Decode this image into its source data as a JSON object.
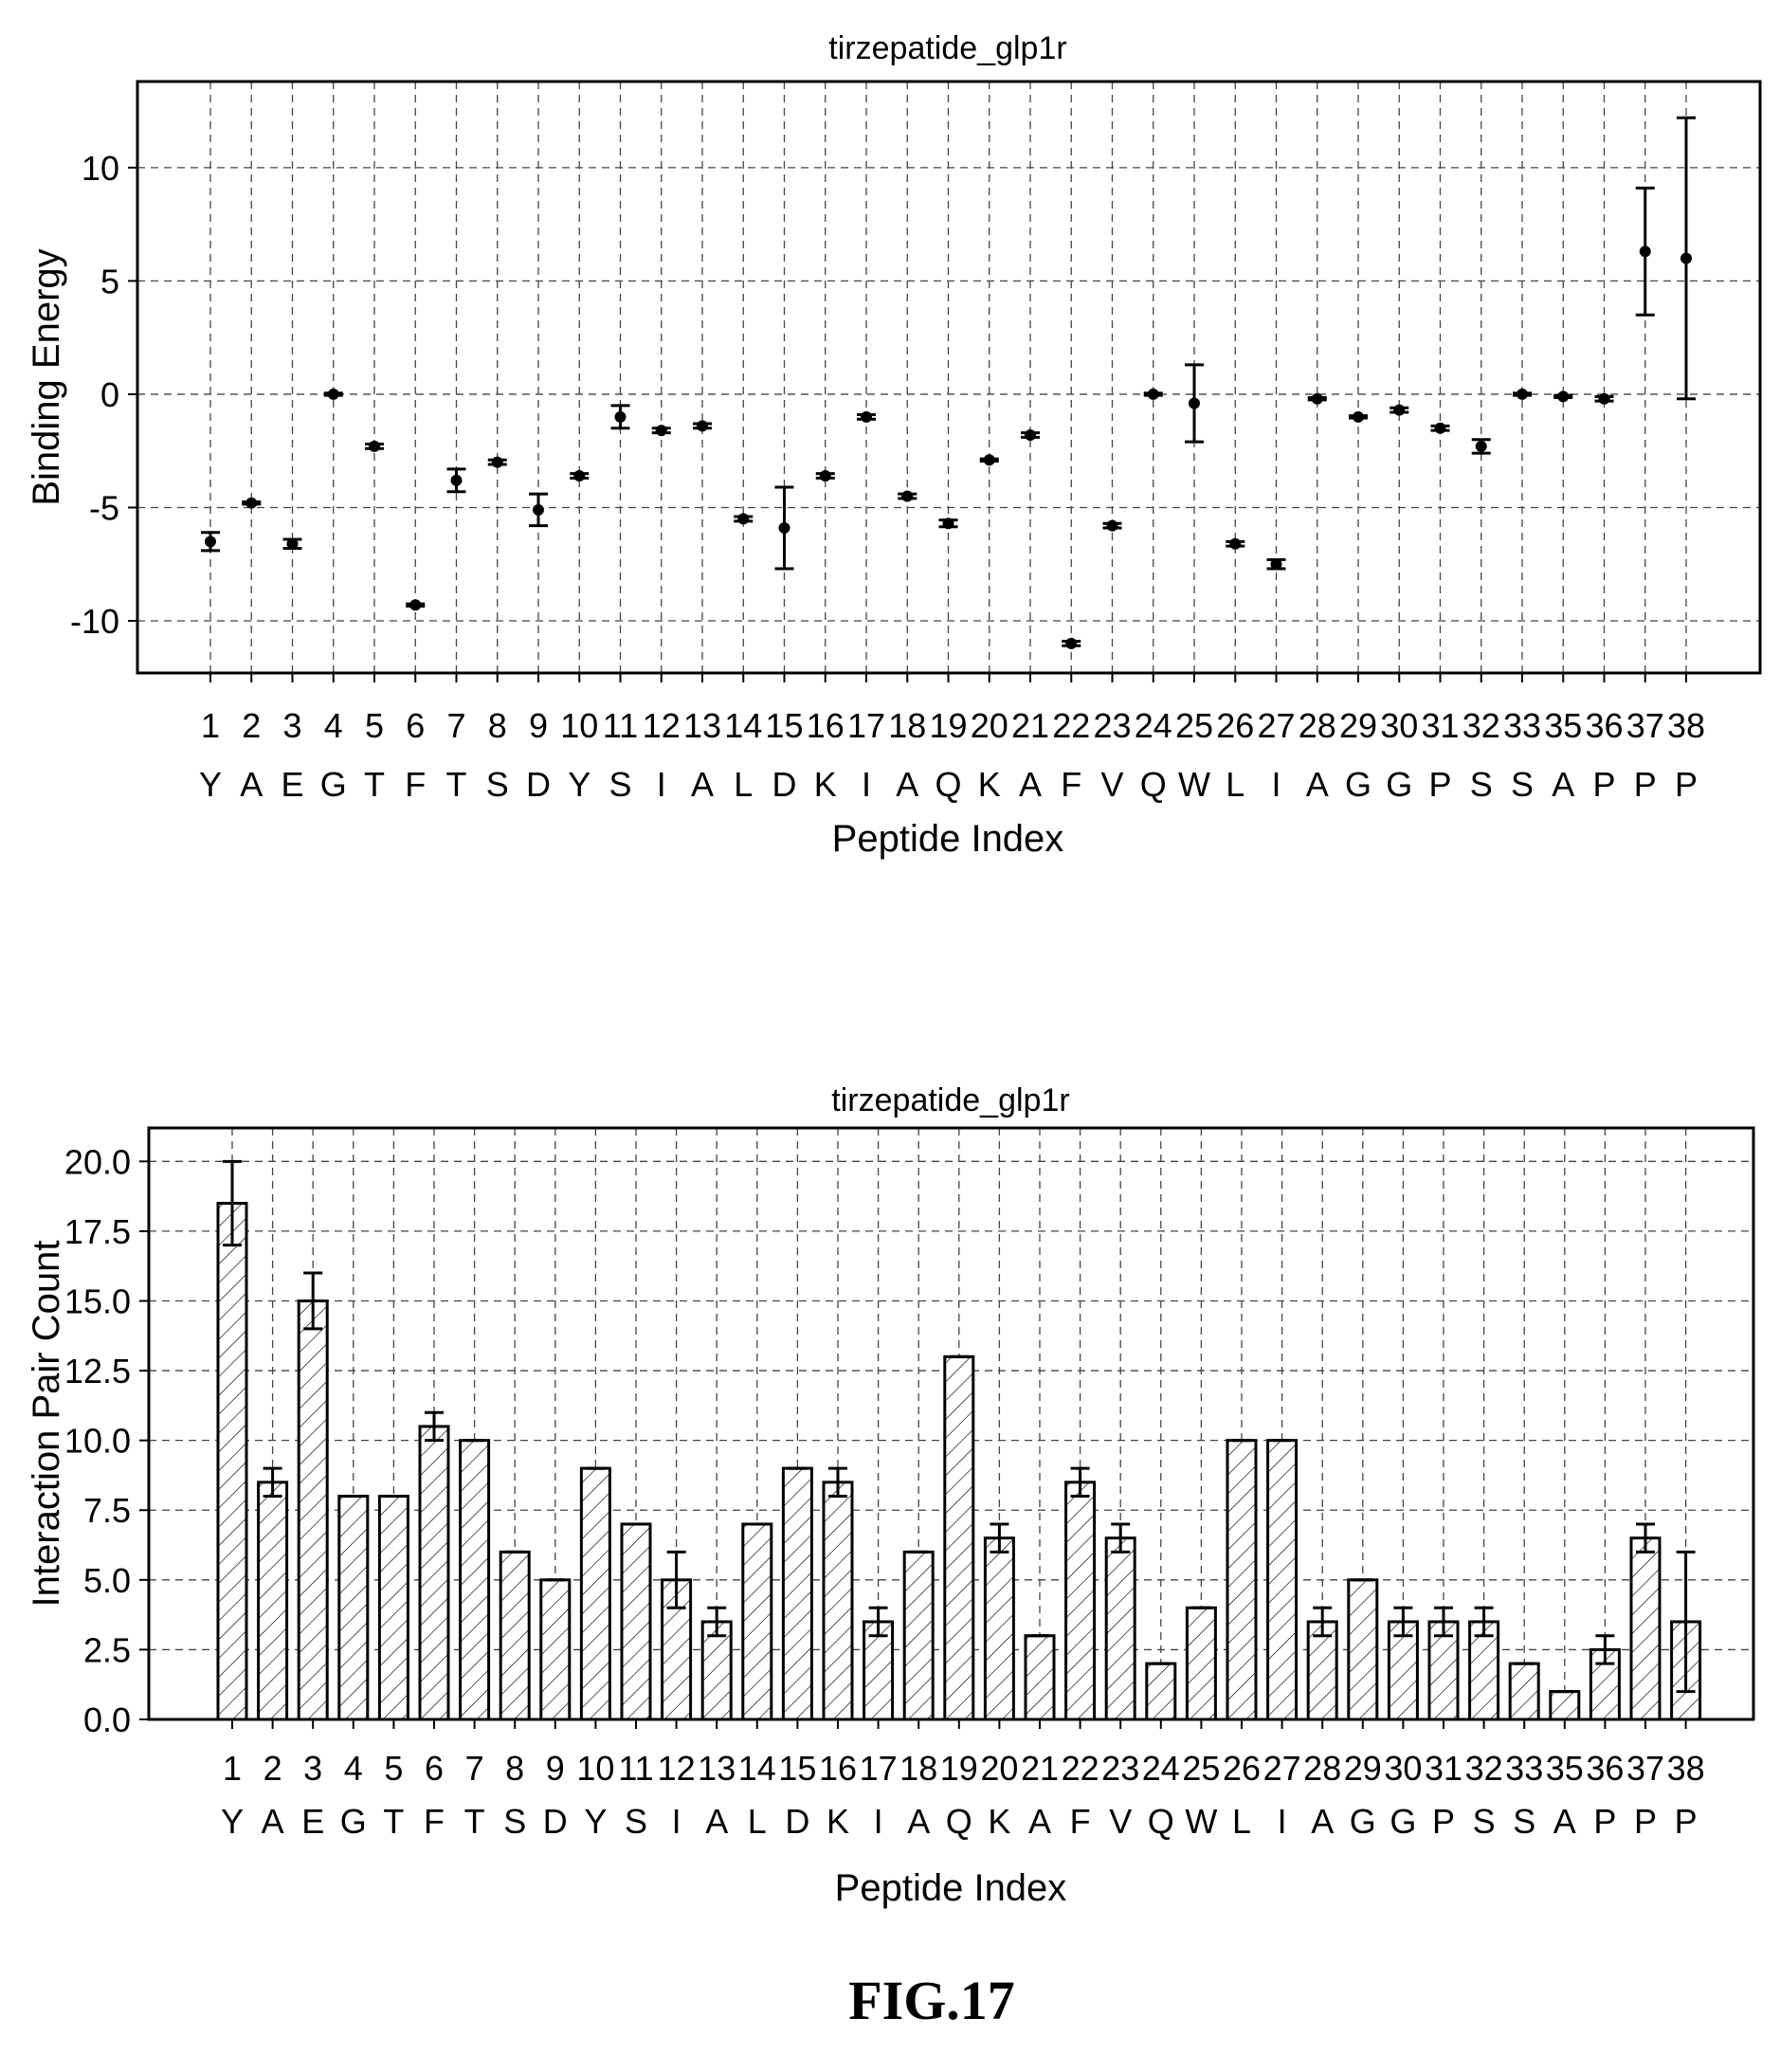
{
  "figure_label": "FIG.17",
  "chart_data": [
    {
      "type": "scatter",
      "title": "tirzepatide_glp1r",
      "xlabel": "Peptide Index",
      "ylabel": "Binding Energy",
      "ylim": [
        -12.3,
        13.8
      ],
      "yticks": [
        10,
        5,
        0,
        -5,
        -10
      ],
      "ytick_labels": [
        "10",
        "5",
        "0",
        "-5",
        "-10"
      ],
      "grid": true,
      "categories": [
        "1",
        "2",
        "3",
        "4",
        "5",
        "6",
        "7",
        "8",
        "9",
        "10",
        "11",
        "12",
        "13",
        "14",
        "15",
        "16",
        "17",
        "18",
        "19",
        "20",
        "21",
        "22",
        "23",
        "24",
        "25",
        "26",
        "27",
        "28",
        "29",
        "30",
        "31",
        "32",
        "33",
        "35",
        "36",
        "37",
        "38"
      ],
      "residues": [
        "Y",
        "A",
        "E",
        "G",
        "T",
        "F",
        "T",
        "S",
        "D",
        "Y",
        "S",
        "I",
        "A",
        "L",
        "D",
        "K",
        "I",
        "A",
        "Q",
        "K",
        "A",
        "F",
        "V",
        "Q",
        "W",
        "L",
        "I",
        "A",
        "G",
        "G",
        "P",
        "S",
        "S",
        "A",
        "P",
        "P",
        "P"
      ],
      "values": [
        -6.5,
        -4.8,
        -6.6,
        0.0,
        -2.3,
        -9.3,
        -3.8,
        -3.0,
        -5.1,
        -3.6,
        -1.0,
        -1.6,
        -1.4,
        -5.5,
        -5.9,
        -3.6,
        -1.0,
        -4.5,
        -5.7,
        -2.9,
        -1.8,
        -11.0,
        -5.8,
        0.0,
        -0.4,
        -6.6,
        -7.5,
        -0.2,
        -1.0,
        -0.7,
        -1.5,
        -2.3,
        0.0,
        -0.1,
        -0.2,
        6.3,
        6.0
      ],
      "errors": [
        0.4,
        0.05,
        0.2,
        0.05,
        0.1,
        0.05,
        0.5,
        0.1,
        0.7,
        0.1,
        0.5,
        0.1,
        0.1,
        0.1,
        1.8,
        0.1,
        0.1,
        0.1,
        0.15,
        0.05,
        0.1,
        0.1,
        0.1,
        0.05,
        1.7,
        0.1,
        0.2,
        0.05,
        0.05,
        0.1,
        0.1,
        0.3,
        0.05,
        0.05,
        0.1,
        2.8,
        6.2
      ]
    },
    {
      "type": "bar",
      "title": "tirzepatide_glp1r",
      "xlabel": "Peptide Index",
      "ylabel": "Interaction Pair Count",
      "ylim": [
        0,
        21.2
      ],
      "yticks": [
        0.0,
        2.5,
        5.0,
        7.5,
        10.0,
        12.5,
        15.0,
        17.5,
        20.0
      ],
      "ytick_labels": [
        "0.0",
        "2.5",
        "5.0",
        "7.5",
        "10.0",
        "12.5",
        "15.0",
        "17.5",
        "20.0"
      ],
      "grid": true,
      "categories": [
        "1",
        "2",
        "3",
        "4",
        "5",
        "6",
        "7",
        "8",
        "9",
        "10",
        "11",
        "12",
        "13",
        "14",
        "15",
        "16",
        "17",
        "18",
        "19",
        "20",
        "21",
        "22",
        "23",
        "24",
        "25",
        "26",
        "27",
        "28",
        "29",
        "30",
        "31",
        "32",
        "33",
        "35",
        "36",
        "37",
        "38"
      ],
      "residues": [
        "Y",
        "A",
        "E",
        "G",
        "T",
        "F",
        "T",
        "S",
        "D",
        "Y",
        "S",
        "I",
        "A",
        "L",
        "D",
        "K",
        "I",
        "A",
        "Q",
        "K",
        "A",
        "F",
        "V",
        "Q",
        "W",
        "L",
        "I",
        "A",
        "G",
        "G",
        "P",
        "S",
        "S",
        "A",
        "P",
        "P",
        "P"
      ],
      "values": [
        18.5,
        8.5,
        15.0,
        8.0,
        8.0,
        10.5,
        10.0,
        6.0,
        5.0,
        9.0,
        7.0,
        5.0,
        3.5,
        7.0,
        9.0,
        8.5,
        3.5,
        6.0,
        13.0,
        6.5,
        3.0,
        8.5,
        6.5,
        2.0,
        4.0,
        10.0,
        10.0,
        3.5,
        5.0,
        3.5,
        3.5,
        3.5,
        2.0,
        1.0,
        2.5,
        6.5,
        3.5
      ],
      "errors": [
        1.5,
        0.5,
        1.0,
        0,
        0,
        0.5,
        0,
        0,
        0,
        0,
        0,
        1.0,
        0.5,
        0,
        0,
        0.5,
        0.5,
        0,
        0,
        0.5,
        0,
        0.5,
        0.5,
        0,
        0,
        0,
        0,
        0.5,
        0,
        0.5,
        0.5,
        0.5,
        0,
        0,
        0.5,
        0.5,
        2.5
      ]
    }
  ]
}
